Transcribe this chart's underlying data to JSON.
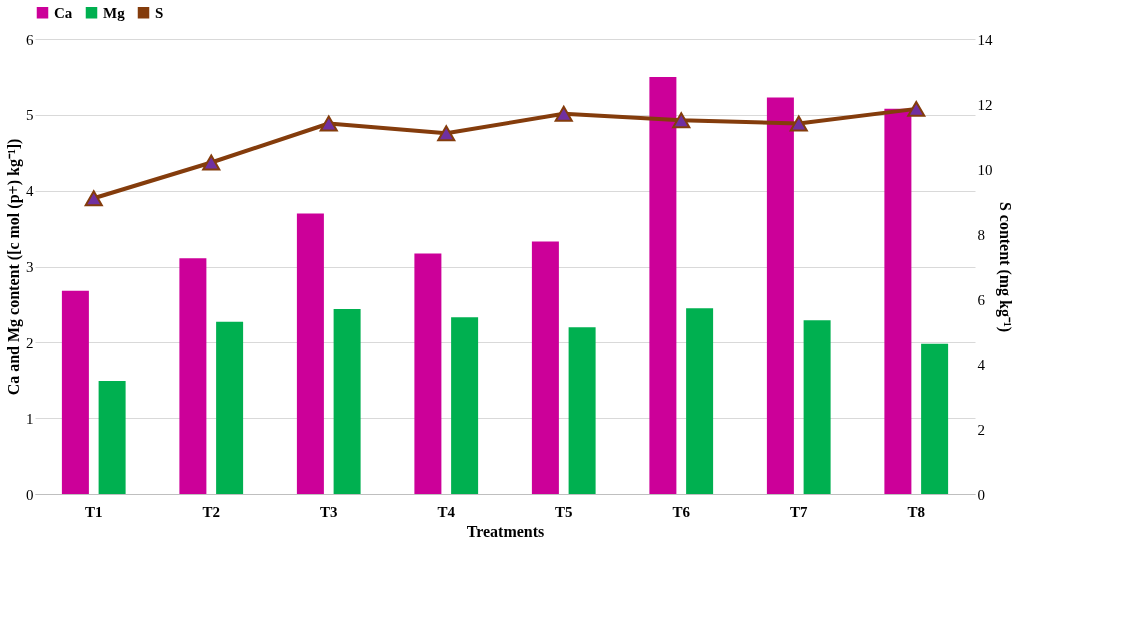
{
  "chart_data": {
    "type": "bar",
    "xlabel": "Treatments",
    "ylabel": "Ca and Mg content ([c mol (p+) kg⁻¹])",
    "y2label": "S content (mg kg⁻¹)",
    "categories": [
      "T1",
      "T2",
      "T3",
      "T4",
      "T5",
      "T6",
      "T7",
      "T8"
    ],
    "series": [
      {
        "name": "Ca",
        "color": "#cc0099",
        "values": [
          2.68,
          3.11,
          3.7,
          3.17,
          3.33,
          5.5,
          5.23,
          5.08
        ]
      },
      {
        "name": "Mg",
        "color": "#00b050",
        "values": [
          1.49,
          2.27,
          2.44,
          2.33,
          2.2,
          2.45,
          2.29,
          1.98
        ]
      },
      {
        "name": "S",
        "type": "line",
        "axis": "y2",
        "color": "#843c0c",
        "marker": "triangle",
        "values": [
          9.1,
          10.2,
          11.4,
          11.1,
          11.7,
          11.5,
          11.4,
          11.85
        ]
      }
    ],
    "ylim": [
      0,
      6
    ],
    "yticks": [
      0,
      1,
      2,
      3,
      4,
      5,
      6
    ],
    "y2lim": [
      0,
      14
    ],
    "y2ticks": [
      0,
      2,
      4,
      6,
      8,
      10,
      12,
      14
    ],
    "grid": "y",
    "legend": "top"
  }
}
